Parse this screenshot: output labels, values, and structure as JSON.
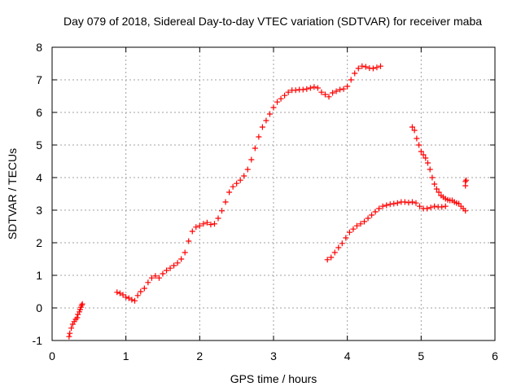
{
  "chart_data": {
    "type": "scatter",
    "title": "Day 079 of 2018, Sidereal Day-to-day VTEC variation (SDTVAR) for receiver maba",
    "xlabel": "GPS time / hours",
    "ylabel": "SDTVAR / TECUs",
    "xlim": [
      0,
      6
    ],
    "ylim": [
      -1,
      8
    ],
    "xticks": [
      "0",
      "1",
      "2",
      "3",
      "4",
      "5",
      "6"
    ],
    "yticks": [
      "-1",
      "0",
      "1",
      "2",
      "3",
      "4",
      "5",
      "6",
      "7",
      "8"
    ],
    "grid": true,
    "marker": "plus",
    "color": "#ff0000",
    "series": [
      {
        "points": [
          [
            0.23,
            -0.88
          ],
          [
            0.24,
            -0.78
          ],
          [
            0.26,
            -0.62
          ],
          [
            0.28,
            -0.5
          ],
          [
            0.3,
            -0.42
          ],
          [
            0.32,
            -0.35
          ],
          [
            0.34,
            -0.3
          ],
          [
            0.35,
            -0.2
          ],
          [
            0.37,
            -0.12
          ],
          [
            0.38,
            -0.05
          ],
          [
            0.39,
            0.02
          ],
          [
            0.4,
            0.08
          ],
          [
            0.41,
            0.12
          ]
        ]
      },
      {
        "points": [
          [
            0.88,
            0.48
          ],
          [
            0.92,
            0.45
          ],
          [
            0.96,
            0.4
          ],
          [
            1.0,
            0.33
          ],
          [
            1.04,
            0.3
          ],
          [
            1.08,
            0.25
          ],
          [
            1.12,
            0.22
          ],
          [
            1.16,
            0.38
          ],
          [
            1.2,
            0.5
          ],
          [
            1.25,
            0.6
          ],
          [
            1.3,
            0.78
          ],
          [
            1.35,
            0.92
          ],
          [
            1.4,
            0.98
          ],
          [
            1.45,
            0.92
          ],
          [
            1.5,
            1.05
          ],
          [
            1.55,
            1.15
          ],
          [
            1.6,
            1.22
          ],
          [
            1.65,
            1.3
          ],
          [
            1.7,
            1.38
          ],
          [
            1.75,
            1.5
          ],
          [
            1.8,
            1.7
          ],
          [
            1.85,
            2.05
          ],
          [
            1.9,
            2.35
          ],
          [
            1.95,
            2.48
          ],
          [
            2.0,
            2.52
          ],
          [
            2.05,
            2.58
          ],
          [
            2.1,
            2.62
          ],
          [
            2.15,
            2.56
          ],
          [
            2.2,
            2.58
          ],
          [
            2.25,
            2.75
          ],
          [
            2.3,
            2.98
          ],
          [
            2.35,
            3.25
          ],
          [
            2.4,
            3.55
          ],
          [
            2.45,
            3.72
          ],
          [
            2.5,
            3.82
          ],
          [
            2.55,
            3.92
          ],
          [
            2.6,
            4.05
          ],
          [
            2.65,
            4.25
          ],
          [
            2.7,
            4.55
          ],
          [
            2.75,
            4.9
          ],
          [
            2.8,
            5.25
          ],
          [
            2.85,
            5.55
          ],
          [
            2.9,
            5.75
          ],
          [
            2.95,
            5.95
          ],
          [
            3.0,
            6.15
          ],
          [
            3.05,
            6.32
          ],
          [
            3.1,
            6.42
          ],
          [
            3.15,
            6.52
          ],
          [
            3.2,
            6.62
          ],
          [
            3.25,
            6.68
          ],
          [
            3.3,
            6.68
          ],
          [
            3.35,
            6.7
          ],
          [
            3.4,
            6.7
          ],
          [
            3.45,
            6.72
          ],
          [
            3.5,
            6.75
          ],
          [
            3.55,
            6.78
          ],
          [
            3.6,
            6.75
          ],
          [
            3.65,
            6.62
          ],
          [
            3.7,
            6.55
          ],
          [
            3.75,
            6.48
          ],
          [
            3.8,
            6.6
          ],
          [
            3.85,
            6.65
          ],
          [
            3.9,
            6.7
          ],
          [
            3.95,
            6.72
          ],
          [
            4.0,
            6.8
          ],
          [
            4.05,
            7.0
          ],
          [
            4.1,
            7.2
          ],
          [
            4.15,
            7.35
          ],
          [
            4.2,
            7.42
          ],
          [
            4.25,
            7.4
          ],
          [
            4.3,
            7.36
          ],
          [
            4.35,
            7.35
          ],
          [
            4.4,
            7.38
          ],
          [
            4.45,
            7.42
          ]
        ]
      },
      {
        "points": [
          [
            3.73,
            1.48
          ],
          [
            3.78,
            1.55
          ],
          [
            3.83,
            1.7
          ],
          [
            3.88,
            1.85
          ],
          [
            3.93,
            1.98
          ],
          [
            3.98,
            2.15
          ],
          [
            4.03,
            2.32
          ],
          [
            4.08,
            2.42
          ],
          [
            4.13,
            2.52
          ],
          [
            4.18,
            2.58
          ],
          [
            4.23,
            2.65
          ],
          [
            4.28,
            2.75
          ],
          [
            4.33,
            2.85
          ],
          [
            4.38,
            2.95
          ],
          [
            4.43,
            3.05
          ],
          [
            4.48,
            3.12
          ],
          [
            4.53,
            3.15
          ],
          [
            4.58,
            3.18
          ],
          [
            4.63,
            3.2
          ],
          [
            4.68,
            3.22
          ],
          [
            4.73,
            3.25
          ],
          [
            4.78,
            3.25
          ],
          [
            4.83,
            3.23
          ],
          [
            4.88,
            3.25
          ],
          [
            4.93,
            3.22
          ],
          [
            4.98,
            3.12
          ],
          [
            5.03,
            3.05
          ],
          [
            5.08,
            3.05
          ],
          [
            5.13,
            3.08
          ],
          [
            5.18,
            3.12
          ],
          [
            5.23,
            3.1
          ],
          [
            5.28,
            3.1
          ],
          [
            5.33,
            3.12
          ]
        ]
      },
      {
        "points": [
          [
            4.88,
            5.55
          ],
          [
            4.91,
            5.45
          ],
          [
            4.94,
            5.2
          ],
          [
            4.97,
            5.0
          ],
          [
            5.0,
            4.8
          ],
          [
            5.03,
            4.7
          ],
          [
            5.06,
            4.6
          ],
          [
            5.09,
            4.45
          ],
          [
            5.12,
            4.25
          ],
          [
            5.15,
            4.0
          ],
          [
            5.18,
            3.8
          ],
          [
            5.21,
            3.65
          ],
          [
            5.24,
            3.55
          ],
          [
            5.27,
            3.45
          ],
          [
            5.3,
            3.4
          ],
          [
            5.33,
            3.35
          ],
          [
            5.36,
            3.32
          ],
          [
            5.39,
            3.3
          ],
          [
            5.42,
            3.3
          ],
          [
            5.45,
            3.25
          ],
          [
            5.48,
            3.22
          ],
          [
            5.51,
            3.2
          ],
          [
            5.54,
            3.12
          ],
          [
            5.57,
            3.05
          ],
          [
            5.6,
            2.98
          ]
        ]
      },
      {
        "points": [
          [
            5.6,
            3.75
          ],
          [
            5.6,
            3.88
          ],
          [
            5.61,
            3.92
          ]
        ]
      }
    ]
  }
}
